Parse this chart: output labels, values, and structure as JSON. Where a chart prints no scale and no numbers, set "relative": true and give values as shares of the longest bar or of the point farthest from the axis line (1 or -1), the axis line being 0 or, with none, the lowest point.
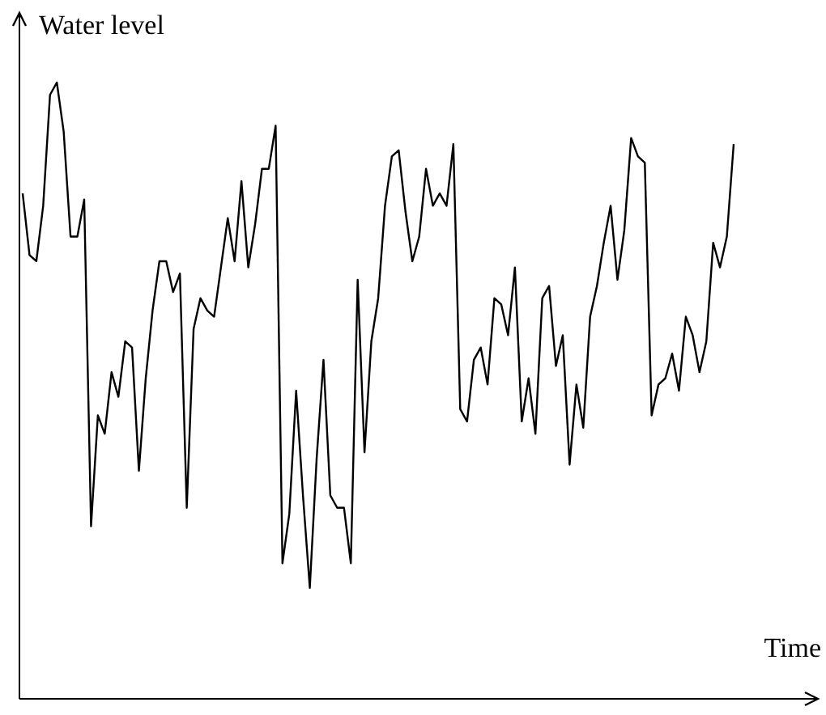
{
  "chart_data": {
    "type": "line",
    "relative": true,
    "xlabel": "Time",
    "ylabel": "Water level",
    "marker": "none",
    "line_style": "solid",
    "categories": [
      null,
      null,
      null,
      null,
      null,
      null,
      null,
      null,
      null,
      null,
      null,
      null,
      null,
      null,
      null,
      null,
      null,
      null,
      null,
      null,
      null,
      null,
      null,
      null,
      null,
      null,
      null,
      null,
      null,
      null,
      null,
      null,
      null,
      null,
      null,
      null,
      null,
      null,
      null,
      null,
      null,
      null,
      null,
      null,
      null,
      null,
      null,
      null,
      null,
      null,
      null,
      null,
      null,
      null,
      null,
      null,
      null,
      null,
      null,
      null,
      null,
      null,
      null,
      null,
      null,
      null,
      null,
      null,
      null,
      null,
      null,
      null,
      null,
      null,
      null,
      null,
      null,
      null,
      null,
      null,
      null,
      null,
      null,
      null,
      null,
      null,
      null,
      null,
      null,
      null,
      null,
      null,
      null,
      null,
      null,
      null,
      null,
      null,
      null,
      null,
      null,
      null,
      null,
      null,
      null
    ],
    "series": [
      {
        "color": "#000000",
        "values": [
          0.82,
          0.72,
          0.71,
          0.8,
          0.98,
          1.0,
          0.92,
          0.75,
          0.75,
          0.81,
          0.28,
          0.46,
          0.43,
          0.53,
          0.49,
          0.58,
          0.57,
          0.37,
          0.52,
          0.63,
          0.71,
          0.71,
          0.66,
          0.69,
          0.31,
          0.6,
          0.65,
          0.63,
          0.62,
          0.7,
          0.78,
          0.71,
          0.84,
          0.7,
          0.77,
          0.86,
          0.86,
          0.93,
          0.22,
          0.3,
          0.5,
          0.33,
          0.18,
          0.39,
          0.55,
          0.33,
          0.31,
          0.31,
          0.22,
          0.68,
          0.4,
          0.58,
          0.65,
          0.8,
          0.88,
          0.89,
          0.79,
          0.71,
          0.75,
          0.86,
          0.8,
          0.82,
          0.8,
          0.9,
          0.47,
          0.45,
          0.55,
          0.57,
          0.51,
          0.65,
          0.64,
          0.59,
          0.7,
          0.45,
          0.52,
          0.43,
          0.65,
          0.67,
          0.54,
          0.59,
          0.38,
          0.51,
          0.44,
          0.62,
          0.67,
          0.74,
          0.8,
          0.68,
          0.76,
          0.91,
          0.88,
          0.87,
          0.46,
          0.51,
          0.52,
          0.56,
          0.5,
          0.62,
          0.59,
          0.53,
          0.58,
          0.74,
          0.7,
          0.75,
          0.9
        ]
      }
    ]
  }
}
